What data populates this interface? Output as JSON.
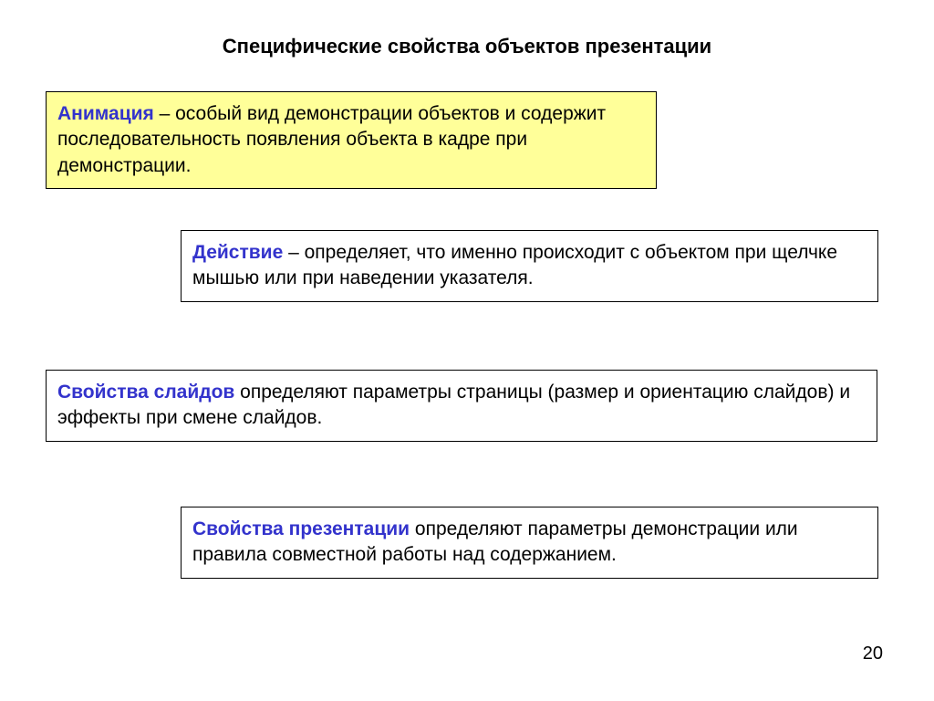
{
  "title": "Специфические свойства объектов презентации",
  "boxes": {
    "animation": {
      "term": "Анимация",
      "body": " – особый вид демонстрации объектов и содержит последовательность появления объекта в кадре при демонстрации."
    },
    "action": {
      "term": "Действие",
      "body": " – определяет, что именно происходит с объектом при щелчке мышью или при наведении указателя."
    },
    "slide_props": {
      "term": "Свойства слайдов",
      "body": " определяют параметры страницы (размер и ориентацию слайдов) и эффекты при смене слайдов."
    },
    "presentation_props": {
      "term": "Свойства презентации",
      "body": " определяют параметры демонстрации или правила совместной работы над содержанием."
    }
  },
  "page_number": "20",
  "colors": {
    "term_color": "#3333cc",
    "highlight_bg": "#ffff99",
    "border": "#000000",
    "text": "#000000",
    "background": "#ffffff"
  },
  "typography": {
    "title_fontsize": 22,
    "body_fontsize": 21
  }
}
